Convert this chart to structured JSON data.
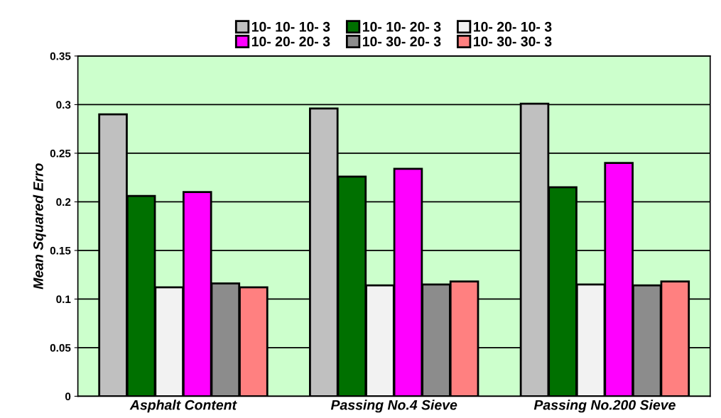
{
  "chart_data": {
    "type": "bar",
    "ylabel": "Mean Squared Erro",
    "categories": [
      "Asphalt Content",
      "Passing No.4 Sieve",
      "Passing No.200 Sieve"
    ],
    "series": [
      {
        "name": "10- 10- 10- 3",
        "color": "#c0c0c0",
        "values": [
          0.29,
          0.296,
          0.301
        ]
      },
      {
        "name": "10- 10- 20- 3",
        "color": "#007000",
        "values": [
          0.206,
          0.226,
          0.215
        ]
      },
      {
        "name": "10- 20- 10- 3",
        "color": "#f2f2f2",
        "values": [
          0.112,
          0.114,
          0.115
        ]
      },
      {
        "name": "10- 20- 20- 3",
        "color": "#ff00ff",
        "values": [
          0.21,
          0.234,
          0.24
        ]
      },
      {
        "name": "10- 30- 20- 3",
        "color": "#8c8c8c",
        "values": [
          0.116,
          0.115,
          0.114
        ]
      },
      {
        "name": "10- 30- 30- 3",
        "color": "#ff8080",
        "values": [
          0.112,
          0.118,
          0.118
        ]
      }
    ],
    "ylim": [
      0,
      0.35
    ],
    "yticks": [
      0,
      0.05,
      0.1,
      0.15,
      0.2,
      0.25,
      0.3,
      0.35
    ],
    "grid": "y",
    "legend": "top"
  }
}
